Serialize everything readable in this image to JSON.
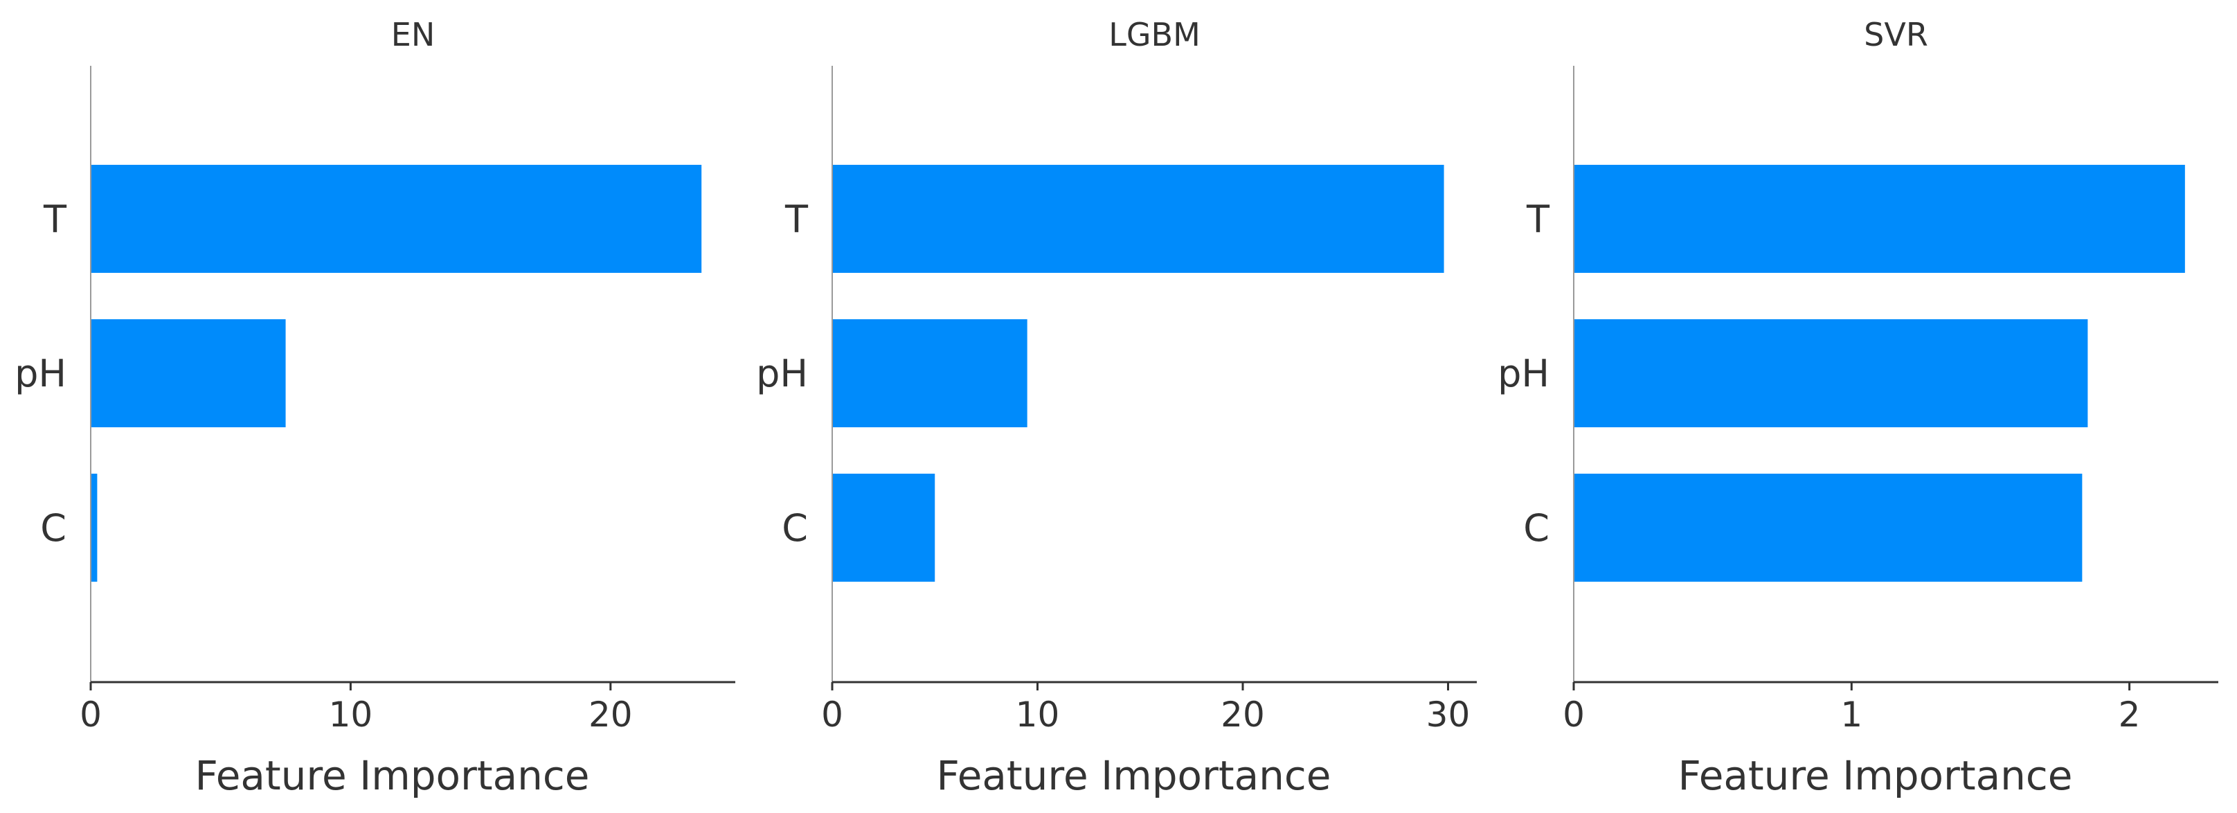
{
  "chart_data": [
    {
      "type": "bar",
      "orientation": "horizontal",
      "title": "EN",
      "xlabel": "Feature Importance",
      "ylabel": "",
      "categories": [
        "T",
        "pH",
        "C"
      ],
      "values": [
        23.5,
        7.5,
        0.25
      ],
      "xlim": [
        0,
        24.8
      ],
      "xticks": [
        0,
        10,
        20
      ],
      "bar_color": "#008bfb",
      "grid": false,
      "legend": "none"
    },
    {
      "type": "bar",
      "orientation": "horizontal",
      "title": "LGBM",
      "xlabel": "Feature Importance",
      "ylabel": "",
      "categories": [
        "T",
        "pH",
        "C"
      ],
      "values": [
        29.8,
        9.5,
        5.0
      ],
      "xlim": [
        0,
        31.4
      ],
      "xticks": [
        0,
        10,
        20,
        30
      ],
      "bar_color": "#008bfb",
      "grid": false,
      "legend": "none"
    },
    {
      "type": "bar",
      "orientation": "horizontal",
      "title": "SVR",
      "xlabel": "Feature Importance",
      "ylabel": "",
      "categories": [
        "T",
        "pH",
        "C"
      ],
      "values": [
        2.2,
        1.85,
        1.83
      ],
      "xlim": [
        0,
        2.32
      ],
      "xticks": [
        0,
        1,
        2
      ],
      "bar_color": "#008bfb",
      "grid": false,
      "legend": "none"
    }
  ]
}
